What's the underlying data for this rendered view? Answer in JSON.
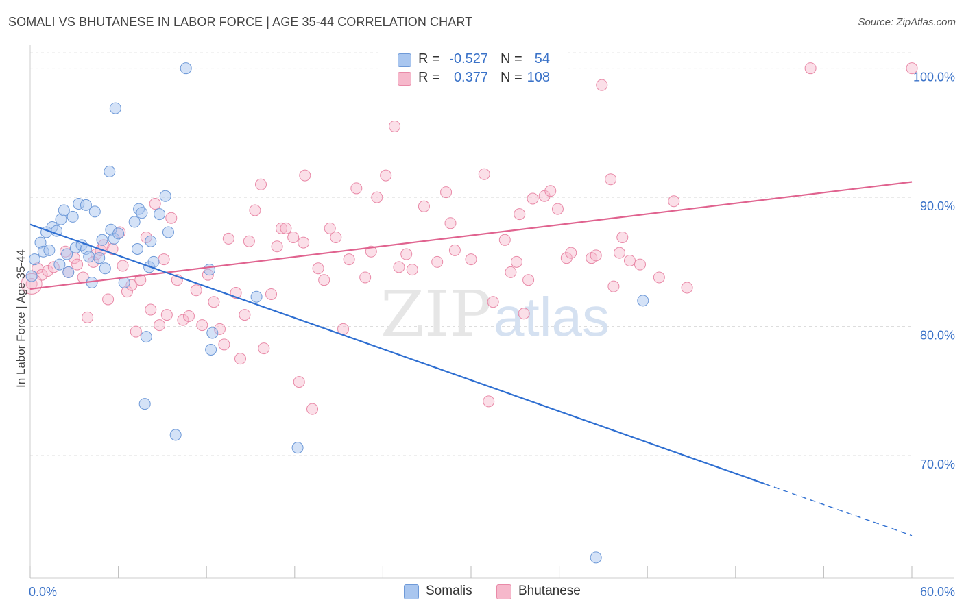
{
  "header": {
    "title": "SOMALI VS BHUTANESE IN LABOR FORCE | AGE 35-44 CORRELATION CHART",
    "source": "Source: ZipAtlas.com"
  },
  "watermark": {
    "zip": "ZIP",
    "atlas": "atlas"
  },
  "colors": {
    "somali_fill": "#a9c6ef",
    "somali_stroke": "#6f9ad8",
    "somali_line": "#2f6fd1",
    "bhutanese_fill": "#f6b8cb",
    "bhutanese_stroke": "#e98aa8",
    "bhutanese_line": "#e0638f",
    "tick_text": "#3a72c8",
    "grid": "#dddddd"
  },
  "legend": {
    "rows": [
      {
        "r_label": "R =",
        "r_value": "-0.527",
        "n_label": "N =",
        "n_value": "54"
      },
      {
        "r_label": "R =",
        "r_value": "0.377",
        "n_label": "N =",
        "n_value": "108"
      }
    ]
  },
  "bottom_legend": {
    "series1": "Somalis",
    "series2": "Bhutanese"
  },
  "chart_data": {
    "type": "scatter",
    "title": "SOMALI VS BHUTANESE IN LABOR FORCE | AGE 35-44 CORRELATION CHART",
    "xlabel": "",
    "ylabel": "In Labor Force | Age 35-44",
    "xlim": [
      0,
      60
    ],
    "ylim": [
      60.5,
      102
    ],
    "x_tick_labels": [
      "0.0%",
      "60.0%"
    ],
    "y_ticks": [
      70,
      80,
      90,
      100
    ],
    "y_tick_labels": [
      "70.0%",
      "80.0%",
      "90.0%",
      "100.0%"
    ],
    "grid": true,
    "legend_position": "top-center",
    "series": [
      {
        "name": "Somalis",
        "r": -0.527,
        "n": 54,
        "trend": {
          "x": [
            0,
            50
          ],
          "y": [
            87.9,
            67.8
          ]
        },
        "trend_dashed": {
          "x": [
            50,
            60
          ],
          "y": [
            67.8,
            63.8
          ]
        },
        "points": [
          [
            0.1,
            83.9
          ],
          [
            0.3,
            85.2
          ],
          [
            0.7,
            86.5
          ],
          [
            0.9,
            85.8
          ],
          [
            1.1,
            87.3
          ],
          [
            1.3,
            85.9
          ],
          [
            1.5,
            87.7
          ],
          [
            1.8,
            87.4
          ],
          [
            2.0,
            84.8
          ],
          [
            2.1,
            88.3
          ],
          [
            2.3,
            89.0
          ],
          [
            2.5,
            85.6
          ],
          [
            2.6,
            84.2
          ],
          [
            2.9,
            88.5
          ],
          [
            3.1,
            86.1
          ],
          [
            3.3,
            89.5
          ],
          [
            3.5,
            86.3
          ],
          [
            3.8,
            89.4
          ],
          [
            3.8,
            86.0
          ],
          [
            4.0,
            85.4
          ],
          [
            4.2,
            83.4
          ],
          [
            4.4,
            88.9
          ],
          [
            4.7,
            85.3
          ],
          [
            4.9,
            86.7
          ],
          [
            5.1,
            84.5
          ],
          [
            5.4,
            92.0
          ],
          [
            5.5,
            87.5
          ],
          [
            5.7,
            86.8
          ],
          [
            5.8,
            96.9
          ],
          [
            6.0,
            87.2
          ],
          [
            6.4,
            83.4
          ],
          [
            7.1,
            88.1
          ],
          [
            7.3,
            86.0
          ],
          [
            7.4,
            89.1
          ],
          [
            7.6,
            88.8
          ],
          [
            7.8,
            74.0
          ],
          [
            7.9,
            79.2
          ],
          [
            8.1,
            84.6
          ],
          [
            8.2,
            86.6
          ],
          [
            8.4,
            85.0
          ],
          [
            8.8,
            88.7
          ],
          [
            9.2,
            90.1
          ],
          [
            9.4,
            87.3
          ],
          [
            9.9,
            71.6
          ],
          [
            10.6,
            100.0
          ],
          [
            12.2,
            84.4
          ],
          [
            12.3,
            78.2
          ],
          [
            12.4,
            79.5
          ],
          [
            15.4,
            82.3
          ],
          [
            18.2,
            70.6
          ],
          [
            38.5,
            62.1
          ],
          [
            41.7,
            82.0
          ]
        ]
      },
      {
        "name": "Bhutanese",
        "r": 0.377,
        "n": 108,
        "trend": {
          "x": [
            0,
            60
          ],
          "y": [
            82.9,
            91.2
          ]
        },
        "points": [
          [
            0.1,
            83.3
          ],
          [
            0.5,
            84.5
          ],
          [
            0.8,
            84.0
          ],
          [
            1.2,
            84.3
          ],
          [
            1.6,
            84.6
          ],
          [
            2.4,
            85.8
          ],
          [
            2.6,
            84.2
          ],
          [
            3.0,
            85.3
          ],
          [
            3.2,
            84.8
          ],
          [
            3.6,
            83.8
          ],
          [
            3.9,
            80.7
          ],
          [
            4.3,
            85.0
          ],
          [
            4.5,
            85.6
          ],
          [
            4.8,
            85.9
          ],
          [
            5.0,
            86.3
          ],
          [
            5.3,
            82.1
          ],
          [
            5.6,
            86.0
          ],
          [
            6.1,
            87.3
          ],
          [
            6.3,
            84.7
          ],
          [
            6.6,
            82.7
          ],
          [
            6.9,
            83.2
          ],
          [
            7.2,
            79.6
          ],
          [
            7.5,
            83.6
          ],
          [
            7.9,
            86.9
          ],
          [
            8.2,
            81.3
          ],
          [
            8.5,
            89.5
          ],
          [
            8.8,
            80.1
          ],
          [
            9.1,
            85.2
          ],
          [
            9.3,
            80.9
          ],
          [
            9.6,
            88.4
          ],
          [
            10.0,
            83.6
          ],
          [
            10.4,
            80.5
          ],
          [
            10.8,
            80.8
          ],
          [
            11.3,
            82.8
          ],
          [
            11.7,
            80.1
          ],
          [
            12.1,
            84.0
          ],
          [
            12.5,
            81.9
          ],
          [
            12.9,
            79.8
          ],
          [
            13.2,
            78.6
          ],
          [
            13.5,
            86.8
          ],
          [
            14.0,
            82.6
          ],
          [
            14.3,
            77.5
          ],
          [
            14.6,
            80.9
          ],
          [
            14.9,
            86.6
          ],
          [
            15.3,
            89.0
          ],
          [
            15.7,
            91.0
          ],
          [
            15.9,
            78.3
          ],
          [
            16.4,
            82.5
          ],
          [
            16.8,
            86.2
          ],
          [
            17.1,
            87.6
          ],
          [
            17.4,
            87.6
          ],
          [
            17.9,
            86.9
          ],
          [
            18.3,
            75.7
          ],
          [
            18.6,
            86.5
          ],
          [
            18.7,
            91.7
          ],
          [
            19.2,
            73.6
          ],
          [
            19.6,
            84.5
          ],
          [
            20.0,
            83.6
          ],
          [
            20.4,
            87.6
          ],
          [
            20.8,
            86.9
          ],
          [
            21.3,
            79.8
          ],
          [
            21.7,
            85.2
          ],
          [
            22.2,
            90.7
          ],
          [
            22.8,
            83.8
          ],
          [
            23.2,
            85.8
          ],
          [
            23.6,
            90.0
          ],
          [
            24.2,
            91.7
          ],
          [
            24.8,
            95.5
          ],
          [
            25.1,
            84.6
          ],
          [
            25.6,
            85.6
          ],
          [
            26.0,
            84.4
          ],
          [
            26.8,
            89.3
          ],
          [
            27.7,
            85.0
          ],
          [
            28.3,
            90.4
          ],
          [
            28.6,
            88.0
          ],
          [
            28.9,
            85.9
          ],
          [
            30.0,
            85.2
          ],
          [
            30.9,
            91.8
          ],
          [
            31.2,
            74.2
          ],
          [
            31.5,
            81.9
          ],
          [
            32.3,
            86.7
          ],
          [
            32.7,
            84.2
          ],
          [
            33.1,
            85.0
          ],
          [
            33.3,
            88.7
          ],
          [
            33.6,
            81.0
          ],
          [
            33.9,
            83.6
          ],
          [
            34.2,
            89.9
          ],
          [
            35.0,
            90.1
          ],
          [
            35.4,
            90.5
          ],
          [
            35.9,
            89.1
          ],
          [
            36.5,
            85.3
          ],
          [
            36.8,
            85.7
          ],
          [
            38.2,
            85.3
          ],
          [
            38.5,
            85.5
          ],
          [
            38.9,
            98.7
          ],
          [
            39.5,
            91.4
          ],
          [
            39.7,
            83.1
          ],
          [
            40.1,
            85.7
          ],
          [
            40.3,
            86.9
          ],
          [
            40.8,
            85.1
          ],
          [
            41.5,
            84.8
          ],
          [
            42.8,
            83.8
          ],
          [
            43.8,
            89.7
          ],
          [
            44.7,
            83.0
          ],
          [
            53.1,
            100.0
          ],
          [
            60.0,
            100.0
          ]
        ]
      }
    ]
  }
}
